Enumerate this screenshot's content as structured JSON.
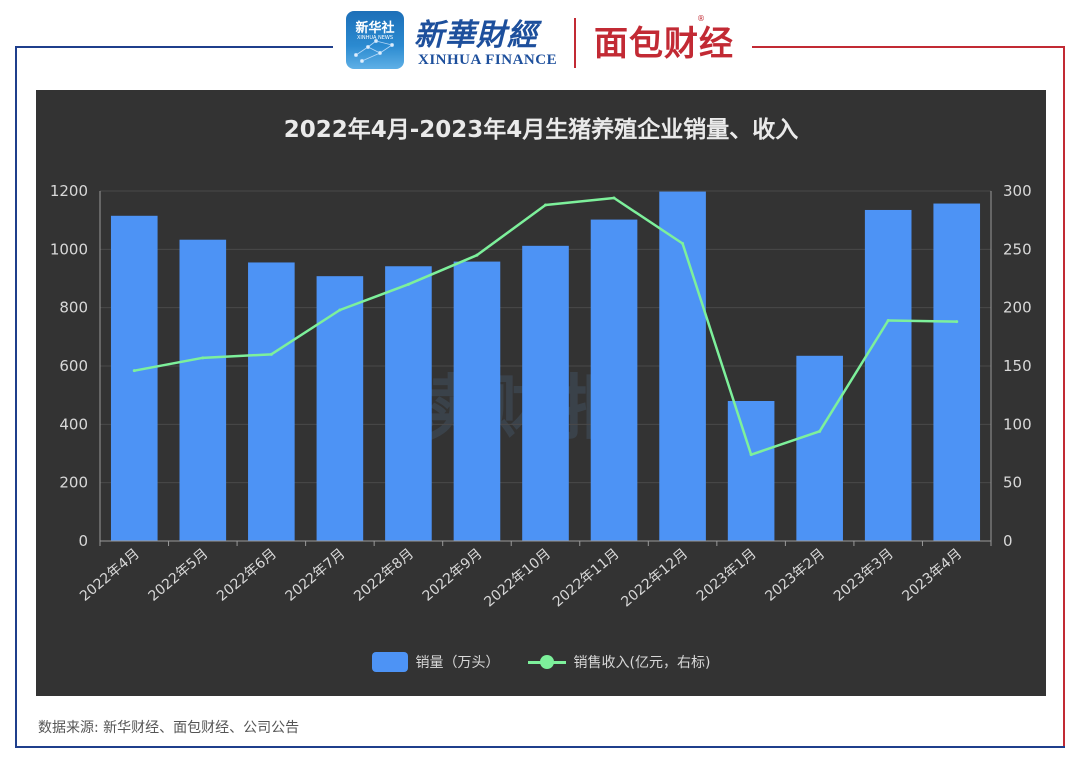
{
  "header": {
    "xinhua_badge": "新华社",
    "xinhua_badge_sub": "XINHUA NEWS",
    "xinhua_finance_cn": "新華財經",
    "xinhua_finance_en": "XINHUA FINANCE",
    "mianbao_logo": "面包财经",
    "reg_mark": "®"
  },
  "watermark": "读财报",
  "source": "数据来源: 新华财经、面包财经、公司公告",
  "colors": {
    "panel_bg": "#333333",
    "bar": "#4d93f5",
    "line": "#7df09b",
    "grid": "#4a4a4a",
    "axis_text": "#d8d8d8",
    "frame_blue": "#1f3f8c",
    "frame_red": "#c22a34"
  },
  "chart_data": {
    "type": "bar",
    "title": "2022年4月-2023年4月生猪养殖企业销量、收入",
    "categories": [
      "2022年4月",
      "2022年5月",
      "2022年6月",
      "2022年7月",
      "2022年8月",
      "2022年9月",
      "2022年10月",
      "2022年11月",
      "2022年12月",
      "2023年1月",
      "2023年2月",
      "2023年3月",
      "2023年4月"
    ],
    "series": [
      {
        "name": "销量（万头）",
        "type": "bar",
        "axis": "left",
        "values": [
          1115,
          1033,
          955,
          908,
          942,
          958,
          1012,
          1102,
          1198,
          480,
          635,
          1135,
          1157
        ]
      },
      {
        "name": "销售收入(亿元，右标)",
        "type": "line",
        "axis": "right",
        "values": [
          146,
          157,
          160,
          198,
          220,
          245,
          288,
          294,
          255,
          74,
          94,
          189,
          188
        ]
      }
    ],
    "ylim_left": [
      0,
      1200
    ],
    "yticks_left": [
      0,
      200,
      400,
      600,
      800,
      1000,
      1200
    ],
    "ylim_right": [
      0,
      300
    ],
    "yticks_right": [
      0,
      50,
      100,
      150,
      200,
      250,
      300
    ],
    "grid": true,
    "legend_position": "bottom"
  }
}
